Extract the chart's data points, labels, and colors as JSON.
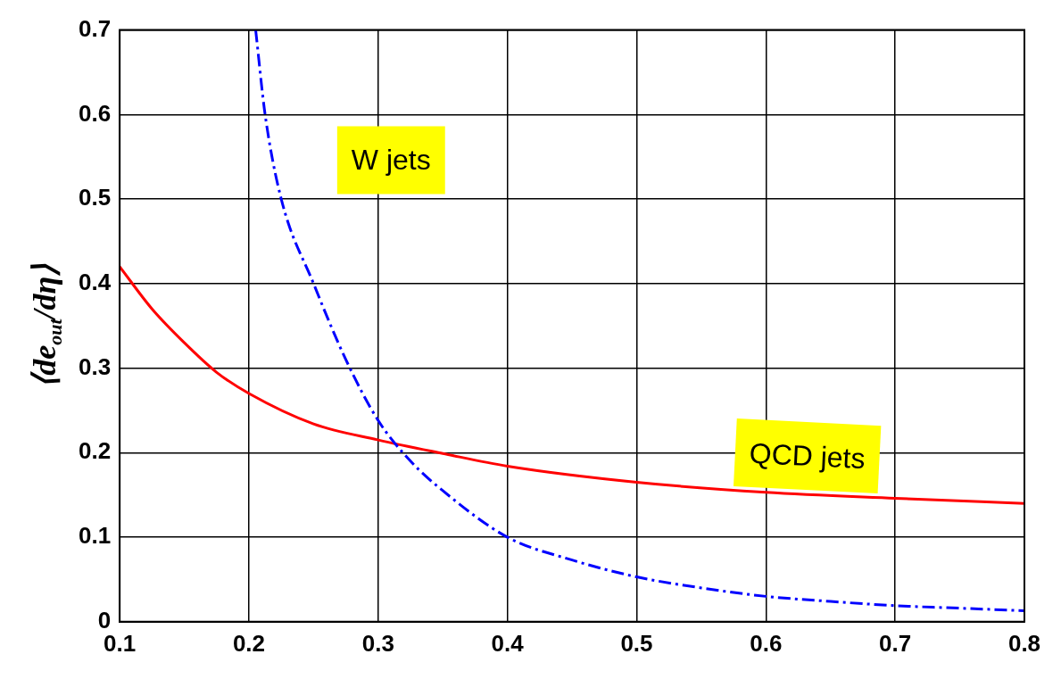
{
  "chart_data": {
    "type": "line",
    "ylabel": "⟨de$_{out}$/dη⟩",
    "xlim": [
      0.1,
      0.8
    ],
    "xticks": [
      0.1,
      0.2,
      0.3,
      0.4,
      0.5,
      0.6,
      0.7,
      0.8
    ],
    "ylim": [
      0,
      0.7
    ],
    "yticks": [
      0,
      0.1,
      0.2,
      0.3,
      0.4,
      0.5,
      0.6,
      0.7
    ],
    "grid": true,
    "legend": false,
    "marker": "none",
    "series": [
      {
        "name": "W jets",
        "color": "#0000ff",
        "line_style": "dashed",
        "x": [
          0.2052,
          0.2125,
          0.225,
          0.25,
          0.275,
          0.3,
          0.325,
          0.35,
          0.4,
          0.45,
          0.5,
          0.55,
          0.6,
          0.65,
          0.7,
          0.75,
          0.8
        ],
        "values": [
          0.7,
          0.6,
          0.5,
          0.4,
          0.31,
          0.238,
          0.19,
          0.155,
          0.1,
          0.073,
          0.053,
          0.04,
          0.03,
          0.024,
          0.019,
          0.016,
          0.013
        ]
      },
      {
        "name": "QCD jets",
        "color": "#ff0000",
        "line_style": "solid",
        "x": [
          0.1,
          0.125,
          0.15,
          0.175,
          0.2,
          0.25,
          0.3,
          0.35,
          0.4,
          0.5,
          0.6,
          0.7,
          0.8
        ],
        "values": [
          0.42,
          0.37,
          0.33,
          0.295,
          0.27,
          0.234,
          0.215,
          0.199,
          0.184,
          0.165,
          0.153,
          0.146,
          0.14
        ]
      }
    ]
  }
}
